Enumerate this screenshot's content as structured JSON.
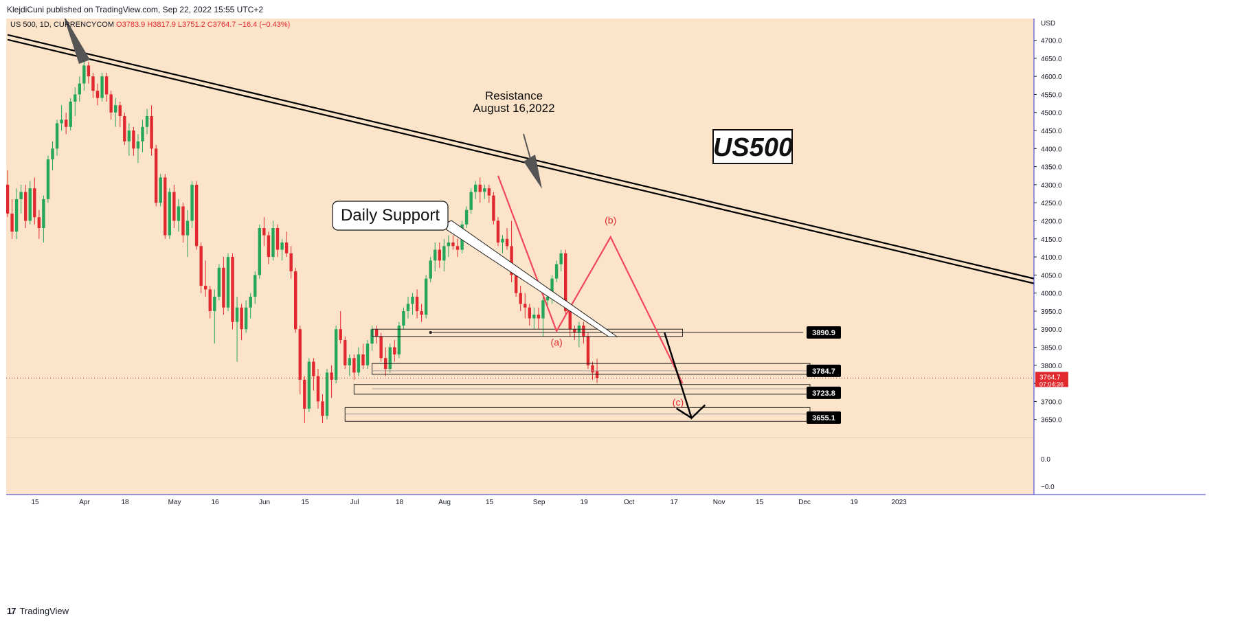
{
  "header": {
    "text": "KlejdiCuni published on TradingView.com, Sep 22, 2022 15:55 UTC+2"
  },
  "footer": {
    "logo": "17",
    "text": "TradingView"
  },
  "colors": {
    "bg": "#fbe4ca",
    "up": "#26a65b",
    "down": "#e0282e",
    "text": "#131722",
    "axis": "#2e2ed6",
    "red_label": "#e0282e",
    "zigzag": "#f2465a"
  },
  "chart_data": {
    "type": "candlestick",
    "symbol_line": {
      "symbol": "US 500, 1D, CURRENCYCOM",
      "o": "O3783.9",
      "h": "H3817.9",
      "l": "L3751.2",
      "c": "C3764.7",
      "chg": "−16.4 (−0.43%)"
    },
    "currency": "USD",
    "ylim": [
      3600,
      4760
    ],
    "y_ticks": [
      "4700.0",
      "4650.0",
      "4600.0",
      "4550.0",
      "4500.0",
      "4450.0",
      "4400.0",
      "4350.0",
      "4300.0",
      "4250.0",
      "4200.0",
      "4150.0",
      "4100.0",
      "4050.0",
      "4000.0",
      "3950.0",
      "3900.0",
      "3850.0",
      "3800.0",
      "3750.0",
      "3700.0",
      "3650.0"
    ],
    "subpane_ticks": [
      "0.0",
      "−0.0"
    ],
    "x_ticks": [
      "15",
      "Apr",
      "18",
      "May",
      "16",
      "Jun",
      "15",
      "Jul",
      "18",
      "Aug",
      "15",
      "Sep",
      "19",
      "Oct",
      "17",
      "Nov",
      "15",
      "Dec",
      "19",
      "2023"
    ],
    "x_tick_index": [
      0,
      11,
      20,
      31,
      40,
      51,
      60,
      71,
      81,
      91,
      101,
      112,
      122,
      132,
      142,
      152,
      161,
      171,
      182,
      192
    ],
    "ohlc": [
      [
        4300,
        4340,
        4210,
        4220
      ],
      [
        4220,
        4260,
        4150,
        4170
      ],
      [
        4170,
        4290,
        4150,
        4260
      ],
      [
        4260,
        4300,
        4220,
        4280
      ],
      [
        4280,
        4300,
        4180,
        4200
      ],
      [
        4200,
        4310,
        4190,
        4290
      ],
      [
        4290,
        4320,
        4190,
        4210
      ],
      [
        4210,
        4230,
        4150,
        4180
      ],
      [
        4180,
        4270,
        4140,
        4260
      ],
      [
        4260,
        4380,
        4250,
        4370
      ],
      [
        4370,
        4420,
        4340,
        4400
      ],
      [
        4400,
        4480,
        4380,
        4470
      ],
      [
        4470,
        4520,
        4450,
        4480
      ],
      [
        4480,
        4500,
        4440,
        4460
      ],
      [
        4460,
        4540,
        4450,
        4530
      ],
      [
        4530,
        4570,
        4490,
        4550
      ],
      [
        4550,
        4600,
        4530,
        4580
      ],
      [
        4580,
        4640,
        4560,
        4630
      ],
      [
        4630,
        4640,
        4580,
        4600
      ],
      [
        4600,
        4610,
        4540,
        4560
      ],
      [
        4560,
        4580,
        4520,
        4540
      ],
      [
        4540,
        4610,
        4530,
        4600
      ],
      [
        4600,
        4610,
        4530,
        4550
      ],
      [
        4550,
        4560,
        4480,
        4500
      ],
      [
        4500,
        4540,
        4460,
        4520
      ],
      [
        4520,
        4530,
        4460,
        4490
      ],
      [
        4490,
        4500,
        4410,
        4420
      ],
      [
        4420,
        4470,
        4380,
        4450
      ],
      [
        4450,
        4460,
        4380,
        4400
      ],
      [
        4400,
        4440,
        4360,
        4420
      ],
      [
        4420,
        4480,
        4390,
        4460
      ],
      [
        4460,
        4510,
        4440,
        4490
      ],
      [
        4490,
        4520,
        4380,
        4400
      ],
      [
        4400,
        4410,
        4240,
        4250
      ],
      [
        4250,
        4330,
        4240,
        4320
      ],
      [
        4320,
        4330,
        4150,
        4160
      ],
      [
        4160,
        4290,
        4150,
        4280
      ],
      [
        4280,
        4300,
        4180,
        4200
      ],
      [
        4200,
        4260,
        4170,
        4240
      ],
      [
        4240,
        4250,
        4140,
        4160
      ],
      [
        4160,
        4230,
        4100,
        4200
      ],
      [
        4200,
        4310,
        4180,
        4300
      ],
      [
        4300,
        4310,
        4120,
        4130
      ],
      [
        4130,
        4140,
        4000,
        4020
      ],
      [
        4020,
        4090,
        3990,
        4010
      ],
      [
        4010,
        4020,
        3930,
        3950
      ],
      [
        3950,
        4010,
        3860,
        3990
      ],
      [
        3990,
        4080,
        3980,
        4070
      ],
      [
        4070,
        4100,
        3940,
        3960
      ],
      [
        3960,
        4110,
        3950,
        4100
      ],
      [
        4100,
        4110,
        3900,
        3920
      ],
      [
        3920,
        3990,
        3810,
        3960
      ],
      [
        3960,
        3970,
        3870,
        3900
      ],
      [
        3900,
        3980,
        3890,
        3960
      ],
      [
        3960,
        4000,
        3930,
        3990
      ],
      [
        3990,
        4060,
        3970,
        4050
      ],
      [
        4050,
        4190,
        4040,
        4180
      ],
      [
        4180,
        4210,
        4130,
        4160
      ],
      [
        4160,
        4170,
        4080,
        4100
      ],
      [
        4100,
        4200,
        4090,
        4180
      ],
      [
        4180,
        4190,
        4100,
        4120
      ],
      [
        4120,
        4150,
        4090,
        4140
      ],
      [
        4140,
        4170,
        4100,
        4110
      ],
      [
        4110,
        4130,
        4040,
        4060
      ],
      [
        4060,
        4070,
        3890,
        3900
      ],
      [
        3900,
        3910,
        3720,
        3760
      ],
      [
        3760,
        3770,
        3640,
        3680
      ],
      [
        3680,
        3820,
        3670,
        3810
      ],
      [
        3810,
        3820,
        3730,
        3770
      ],
      [
        3770,
        3790,
        3680,
        3700
      ],
      [
        3700,
        3720,
        3640,
        3660
      ],
      [
        3660,
        3790,
        3650,
        3780
      ],
      [
        3780,
        3800,
        3710,
        3760
      ],
      [
        3760,
        3910,
        3750,
        3900
      ],
      [
        3900,
        3950,
        3860,
        3870
      ],
      [
        3870,
        3880,
        3790,
        3800
      ],
      [
        3800,
        3830,
        3770,
        3820
      ],
      [
        3820,
        3830,
        3760,
        3780
      ],
      [
        3780,
        3850,
        3770,
        3830
      ],
      [
        3830,
        3860,
        3790,
        3800
      ],
      [
        3800,
        3870,
        3790,
        3860
      ],
      [
        3860,
        3910,
        3840,
        3900
      ],
      [
        3900,
        3910,
        3860,
        3880
      ],
      [
        3880,
        3890,
        3810,
        3820
      ],
      [
        3820,
        3850,
        3770,
        3790
      ],
      [
        3790,
        3860,
        3780,
        3850
      ],
      [
        3850,
        3870,
        3810,
        3830
      ],
      [
        3830,
        3920,
        3820,
        3910
      ],
      [
        3910,
        3960,
        3900,
        3950
      ],
      [
        3950,
        3990,
        3930,
        3970
      ],
      [
        3970,
        4000,
        3940,
        3990
      ],
      [
        3990,
        4010,
        3930,
        3950
      ],
      [
        3950,
        3970,
        3920,
        3940
      ],
      [
        3940,
        4050,
        3930,
        4040
      ],
      [
        4040,
        4100,
        4030,
        4090
      ],
      [
        4090,
        4140,
        4060,
        4120
      ],
      [
        4120,
        4140,
        4070,
        4090
      ],
      [
        4090,
        4150,
        4060,
        4130
      ],
      [
        4130,
        4160,
        4100,
        4140
      ],
      [
        4140,
        4160,
        4120,
        4130
      ],
      [
        4130,
        4150,
        4100,
        4120
      ],
      [
        4120,
        4200,
        4110,
        4190
      ],
      [
        4190,
        4240,
        4180,
        4230
      ],
      [
        4230,
        4290,
        4220,
        4280
      ],
      [
        4280,
        4310,
        4260,
        4300
      ],
      [
        4300,
        4320,
        4250,
        4280
      ],
      [
        4280,
        4300,
        4260,
        4290
      ],
      [
        4290,
        4300,
        4250,
        4270
      ],
      [
        4270,
        4280,
        4190,
        4200
      ],
      [
        4200,
        4210,
        4130,
        4140
      ],
      [
        4140,
        4160,
        4110,
        4150
      ],
      [
        4150,
        4180,
        4120,
        4130
      ],
      [
        4130,
        4200,
        4030,
        4050
      ],
      [
        4050,
        4060,
        3990,
        4000
      ],
      [
        4000,
        4020,
        3950,
        3970
      ],
      [
        3970,
        4000,
        3930,
        3960
      ],
      [
        3960,
        3970,
        3910,
        3930
      ],
      [
        3930,
        3960,
        3900,
        3940
      ],
      [
        3940,
        3960,
        3900,
        3930
      ],
      [
        3930,
        3990,
        3880,
        3980
      ],
      [
        3980,
        4010,
        3960,
        3990
      ],
      [
        3990,
        4050,
        3970,
        4040
      ],
      [
        4040,
        4090,
        4030,
        4080
      ],
      [
        4080,
        4120,
        4060,
        4110
      ],
      [
        4110,
        4120,
        3940,
        3950
      ],
      [
        3950,
        3960,
        3880,
        3900
      ],
      [
        3900,
        3910,
        3870,
        3890
      ],
      [
        3890,
        3920,
        3850,
        3910
      ],
      [
        3910,
        3920,
        3860,
        3880
      ],
      [
        3880,
        3890,
        3790,
        3800
      ],
      [
        3800,
        3810,
        3760,
        3780
      ],
      [
        3784,
        3818,
        3751,
        3765
      ]
    ],
    "levels": [
      {
        "price": 3890.9,
        "label": "3890.9"
      },
      {
        "price": 3784.7,
        "label": "3784.7"
      },
      {
        "price": 3723.8,
        "label": "3723.8"
      },
      {
        "price": 3655.1,
        "label": "3655.1"
      }
    ],
    "last_price": {
      "label": "3764.7",
      "countdown": "07:04:36",
      "price": 3764.7
    },
    "trendline": {
      "start": [
        0,
        4715
      ],
      "end": [
        220,
        4040
      ]
    },
    "zigzag": {
      "points": [
        [
          109,
          4325
        ],
        [
          122,
          3895
        ],
        [
          134,
          4155
        ],
        [
          150,
          3750
        ]
      ],
      "labels": [
        {
          "text": "(a)",
          "at": [
            122,
            3855
          ]
        },
        {
          "text": "(b)",
          "at": [
            134,
            4192
          ]
        },
        {
          "text": "(c)",
          "at": [
            149,
            3688
          ]
        }
      ]
    },
    "arrow_path": [
      [
        146,
        3890
      ],
      [
        152,
        3654
      ],
      [
        155,
        3690
      ]
    ],
    "annotations": {
      "resistance_1": "Resistance",
      "resistance_2": "August 16,2022",
      "support": "Daily Support",
      "symbol_box": "US500"
    }
  }
}
